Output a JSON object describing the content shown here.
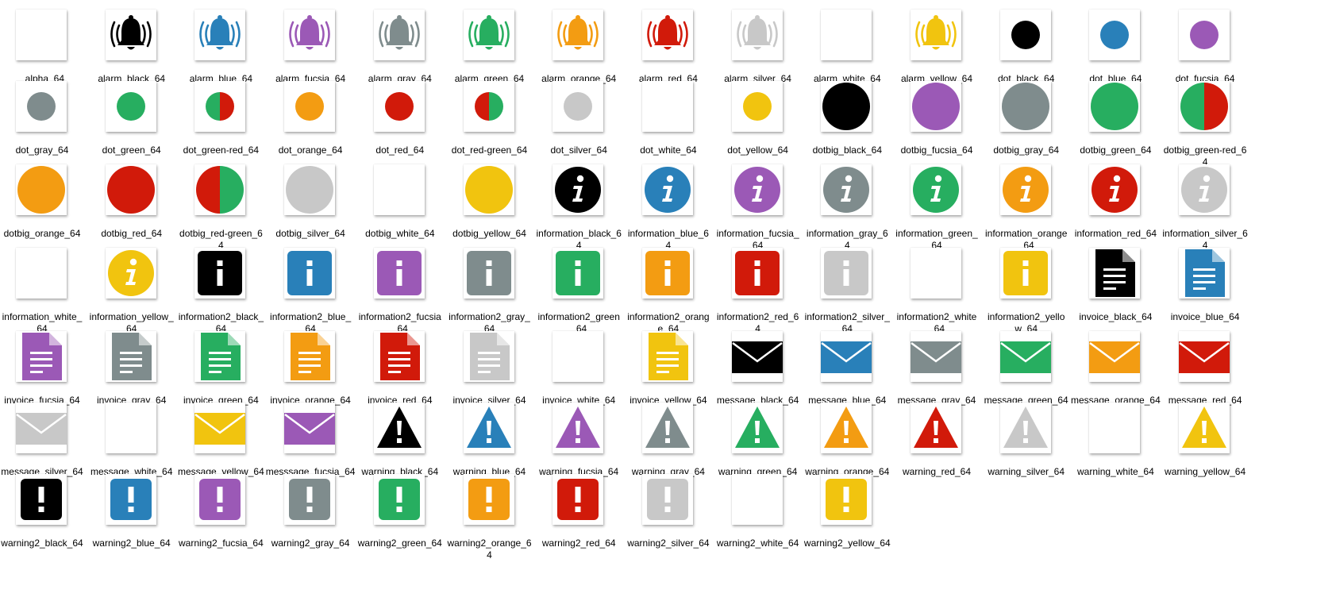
{
  "colors": {
    "black": "#000000",
    "blue": "#2980b9",
    "fucsia": "#9b59b6",
    "gray": "#7f8c8d",
    "green": "#27ae60",
    "orange": "#f39c12",
    "red": "#d11a0a",
    "silver": "#c8c8c8",
    "white": "#ffffff",
    "yellow": "#f1c40f",
    "green-red": "split",
    "red-green": "split"
  },
  "files": [
    {
      "label": "_alpha_64",
      "icon": "blank-icon",
      "color": "white"
    },
    {
      "label": "alarm_black_64",
      "icon": "alarm-bell-icon",
      "color": "black"
    },
    {
      "label": "alarm_blue_64",
      "icon": "alarm-bell-icon",
      "color": "blue"
    },
    {
      "label": "alarm_fucsia_64",
      "icon": "alarm-bell-icon",
      "color": "fucsia"
    },
    {
      "label": "alarm_gray_64",
      "icon": "alarm-bell-icon",
      "color": "gray"
    },
    {
      "label": "alarm_green_64",
      "icon": "alarm-bell-icon",
      "color": "green"
    },
    {
      "label": "alarm_orange_64",
      "icon": "alarm-bell-icon",
      "color": "orange"
    },
    {
      "label": "alarm_red_64",
      "icon": "alarm-bell-icon",
      "color": "red"
    },
    {
      "label": "alarm_silver_64",
      "icon": "alarm-bell-icon",
      "color": "silver"
    },
    {
      "label": "alarm_white_64",
      "icon": "alarm-bell-icon",
      "color": "white"
    },
    {
      "label": "alarm_yellow_64",
      "icon": "alarm-bell-icon",
      "color": "yellow"
    },
    {
      "label": "dot_black_64",
      "icon": "dot-icon",
      "color": "black"
    },
    {
      "label": "dot_blue_64",
      "icon": "dot-icon",
      "color": "blue"
    },
    {
      "label": "dot_fucsia_64",
      "icon": "dot-icon",
      "color": "fucsia"
    },
    {
      "label": "dot_gray_64",
      "icon": "dot-icon",
      "color": "gray"
    },
    {
      "label": "dot_green_64",
      "icon": "dot-icon",
      "color": "green"
    },
    {
      "label": "dot_green-red_64",
      "icon": "dot-icon",
      "color": "green-red"
    },
    {
      "label": "dot_orange_64",
      "icon": "dot-icon",
      "color": "orange"
    },
    {
      "label": "dot_red_64",
      "icon": "dot-icon",
      "color": "red"
    },
    {
      "label": "dot_red-green_64",
      "icon": "dot-icon",
      "color": "red-green"
    },
    {
      "label": "dot_silver_64",
      "icon": "dot-icon",
      "color": "silver"
    },
    {
      "label": "dot_white_64",
      "icon": "dot-icon",
      "color": "white"
    },
    {
      "label": "dot_yellow_64",
      "icon": "dot-icon",
      "color": "yellow"
    },
    {
      "label": "dotbig_black_64",
      "icon": "big-dot-icon",
      "color": "black"
    },
    {
      "label": "dotbig_fucsia_64",
      "icon": "big-dot-icon",
      "color": "fucsia"
    },
    {
      "label": "dotbig_gray_64",
      "icon": "big-dot-icon",
      "color": "gray"
    },
    {
      "label": "dotbig_green_64",
      "icon": "big-dot-icon",
      "color": "green"
    },
    {
      "label": "dotbig_green-red_6\n4",
      "icon": "big-dot-icon",
      "color": "green-red"
    },
    {
      "label": "dotbig_orange_64",
      "icon": "big-dot-icon",
      "color": "orange"
    },
    {
      "label": "dotbig_red_64",
      "icon": "big-dot-icon",
      "color": "red"
    },
    {
      "label": "dotbig_red-green_6\n4",
      "icon": "big-dot-icon",
      "color": "red-green"
    },
    {
      "label": "dotbig_silver_64",
      "icon": "big-dot-icon",
      "color": "silver"
    },
    {
      "label": "dotbig_white_64",
      "icon": "big-dot-icon",
      "color": "white"
    },
    {
      "label": "dotbig_yellow_64",
      "icon": "big-dot-icon",
      "color": "yellow"
    },
    {
      "label": "information_black_6\n4",
      "icon": "information-circle-icon",
      "color": "black"
    },
    {
      "label": "information_blue_6\n4",
      "icon": "information-circle-icon",
      "color": "blue"
    },
    {
      "label": "information_fucsia_\n64",
      "icon": "information-circle-icon",
      "color": "fucsia"
    },
    {
      "label": "information_gray_6\n4",
      "icon": "information-circle-icon",
      "color": "gray"
    },
    {
      "label": "information_green_\n64",
      "icon": "information-circle-icon",
      "color": "green"
    },
    {
      "label": "information_orange\n_64",
      "icon": "information-circle-icon",
      "color": "orange"
    },
    {
      "label": "information_red_64",
      "icon": "information-circle-icon",
      "color": "red"
    },
    {
      "label": "information_silver_6\n4",
      "icon": "information-circle-icon",
      "color": "silver"
    },
    {
      "label": "information_white_\n64",
      "icon": "information-circle-icon",
      "color": "white"
    },
    {
      "label": "information_yellow_\n64",
      "icon": "information-circle-icon",
      "color": "yellow"
    },
    {
      "label": "information2_black_\n64",
      "icon": "information-square-icon",
      "color": "black"
    },
    {
      "label": "information2_blue_\n64",
      "icon": "information-square-icon",
      "color": "blue"
    },
    {
      "label": "information2_fucsia\n_64",
      "icon": "information-square-icon",
      "color": "fucsia"
    },
    {
      "label": "information2_gray_\n64",
      "icon": "information-square-icon",
      "color": "gray"
    },
    {
      "label": "information2_green\n_64",
      "icon": "information-square-icon",
      "color": "green"
    },
    {
      "label": "information2_orang\ne_64",
      "icon": "information-square-icon",
      "color": "orange"
    },
    {
      "label": "information2_red_6\n4",
      "icon": "information-square-icon",
      "color": "red"
    },
    {
      "label": "information2_silver_\n64",
      "icon": "information-square-icon",
      "color": "silver"
    },
    {
      "label": "information2_white\n_64",
      "icon": "information-square-icon",
      "color": "white"
    },
    {
      "label": "information2_yello\nw_64",
      "icon": "information-square-icon",
      "color": "yellow"
    },
    {
      "label": "invoice_black_64",
      "icon": "invoice-document-icon",
      "color": "black"
    },
    {
      "label": "invoice_blue_64",
      "icon": "invoice-document-icon",
      "color": "blue"
    },
    {
      "label": "invoice_fucsia_64",
      "icon": "invoice-document-icon",
      "color": "fucsia"
    },
    {
      "label": "invoice_gray_64",
      "icon": "invoice-document-icon",
      "color": "gray"
    },
    {
      "label": "invoice_green_64",
      "icon": "invoice-document-icon",
      "color": "green"
    },
    {
      "label": "invoice_orange_64",
      "icon": "invoice-document-icon",
      "color": "orange"
    },
    {
      "label": "invoice_red_64",
      "icon": "invoice-document-icon",
      "color": "red"
    },
    {
      "label": "invoice_silver_64",
      "icon": "invoice-document-icon",
      "color": "silver"
    },
    {
      "label": "invoice_white_64",
      "icon": "invoice-document-icon",
      "color": "white"
    },
    {
      "label": "invoice_yellow_64",
      "icon": "invoice-document-icon",
      "color": "yellow"
    },
    {
      "label": "message_black_64",
      "icon": "message-envelope-icon",
      "color": "black"
    },
    {
      "label": "message_blue_64",
      "icon": "message-envelope-icon",
      "color": "blue"
    },
    {
      "label": "message_gray_64",
      "icon": "message-envelope-icon",
      "color": "gray"
    },
    {
      "label": "message_green_64",
      "icon": "message-envelope-icon",
      "color": "green"
    },
    {
      "label": "message_orange_64",
      "icon": "message-envelope-icon",
      "color": "orange"
    },
    {
      "label": "message_red_64",
      "icon": "message-envelope-icon",
      "color": "red"
    },
    {
      "label": "message_silver_64",
      "icon": "message-envelope-icon",
      "color": "silver"
    },
    {
      "label": "message_white_64",
      "icon": "message-envelope-icon",
      "color": "white"
    },
    {
      "label": "message_yellow_64",
      "icon": "message-envelope-icon",
      "color": "yellow"
    },
    {
      "label": "messsage_fucsia_64",
      "icon": "message-envelope-icon",
      "color": "fucsia"
    },
    {
      "label": "warning_black_64",
      "icon": "warning-triangle-icon",
      "color": "black"
    },
    {
      "label": "warning_blue_64",
      "icon": "warning-triangle-icon",
      "color": "blue"
    },
    {
      "label": "warning_fucsia_64",
      "icon": "warning-triangle-icon",
      "color": "fucsia"
    },
    {
      "label": "warning_gray_64",
      "icon": "warning-triangle-icon",
      "color": "gray"
    },
    {
      "label": "warning_green_64",
      "icon": "warning-triangle-icon",
      "color": "green"
    },
    {
      "label": "warning_orange_64",
      "icon": "warning-triangle-icon",
      "color": "orange"
    },
    {
      "label": "warning_red_64",
      "icon": "warning-triangle-icon",
      "color": "red"
    },
    {
      "label": "warning_silver_64",
      "icon": "warning-triangle-icon",
      "color": "silver"
    },
    {
      "label": "warning_white_64",
      "icon": "warning-triangle-icon",
      "color": "white"
    },
    {
      "label": "warning_yellow_64",
      "icon": "warning-triangle-icon",
      "color": "yellow"
    },
    {
      "label": "warning2_black_64",
      "icon": "warning-square-icon",
      "color": "black"
    },
    {
      "label": "warning2_blue_64",
      "icon": "warning-square-icon",
      "color": "blue"
    },
    {
      "label": "warning2_fucsia_64",
      "icon": "warning-square-icon",
      "color": "fucsia"
    },
    {
      "label": "warning2_gray_64",
      "icon": "warning-square-icon",
      "color": "gray"
    },
    {
      "label": "warning2_green_64",
      "icon": "warning-square-icon",
      "color": "green"
    },
    {
      "label": "warning2_orange_6\n4",
      "icon": "warning-square-icon",
      "color": "orange"
    },
    {
      "label": "warning2_red_64",
      "icon": "warning-square-icon",
      "color": "red"
    },
    {
      "label": "warning2_silver_64",
      "icon": "warning-square-icon",
      "color": "silver"
    },
    {
      "label": "warning2_white_64",
      "icon": "warning-square-icon",
      "color": "white"
    },
    {
      "label": "warning2_yellow_64",
      "icon": "warning-square-icon",
      "color": "yellow"
    }
  ]
}
